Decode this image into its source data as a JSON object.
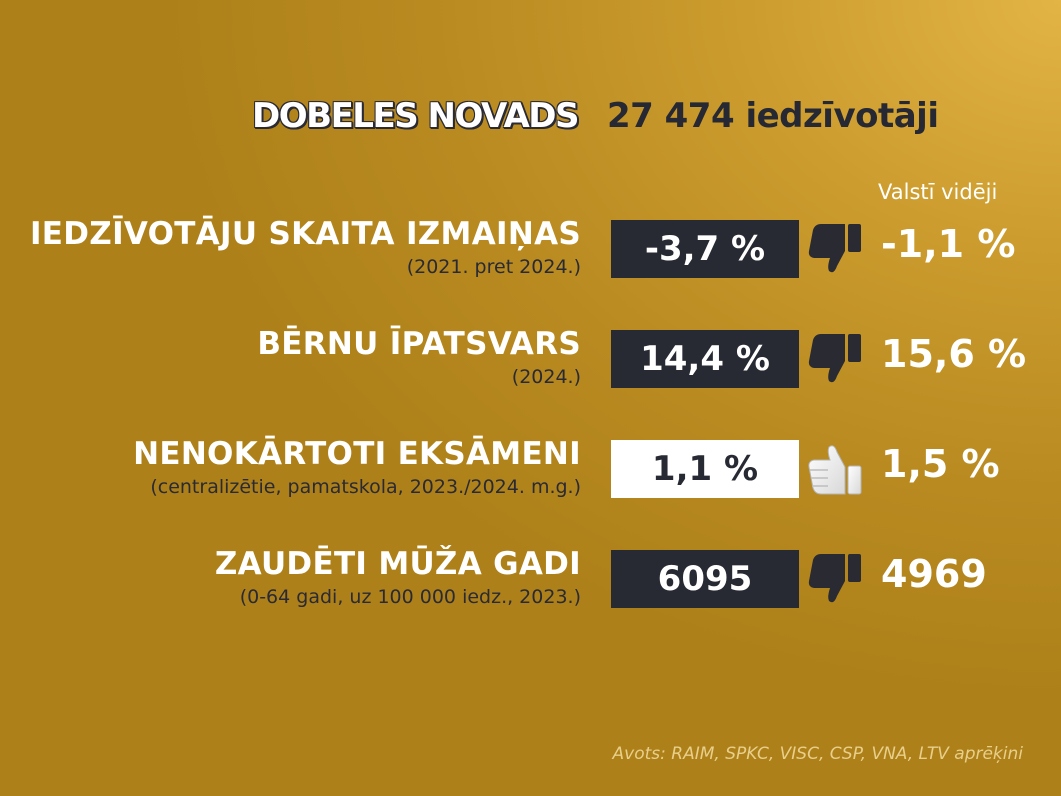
{
  "header": {
    "region": "DOBELES NOVADS",
    "population": "27 474 iedzīvotāji"
  },
  "national_average_label": "Valstī vidēji",
  "rows": [
    {
      "title": "IEDZĪVOTĀJU SKAITA IZMAIŅAS",
      "subtitle": "(2021. pret 2024.)",
      "value": "-3,7 %",
      "national": "-1,1 %",
      "rating": "thumbs-down"
    },
    {
      "title": "BĒRNU ĪPATSVARS",
      "subtitle": "(2024.)",
      "value": "14,4 %",
      "national": "15,6 %",
      "rating": "thumbs-down"
    },
    {
      "title": "NENOKĀRTOTI EKSĀMENI",
      "subtitle": "(centralizētie, pamatskola, 2023./2024. m.g.)",
      "value": "1,1 %",
      "national": "1,5 %",
      "rating": "thumbs-up"
    },
    {
      "title": "ZAUDĒTI MŪŽA GADI",
      "subtitle": "(0-64 gadi, uz 100 000 iedz., 2023.)",
      "value": "6095",
      "national": "4969",
      "rating": "thumbs-down"
    }
  ],
  "source": "Avots: RAIM, SPKC, VISC, CSP, VNA, LTV aprēķini",
  "colors": {
    "background": "#c4952a",
    "dark_box": "#272933",
    "light_box": "#ffffff"
  }
}
